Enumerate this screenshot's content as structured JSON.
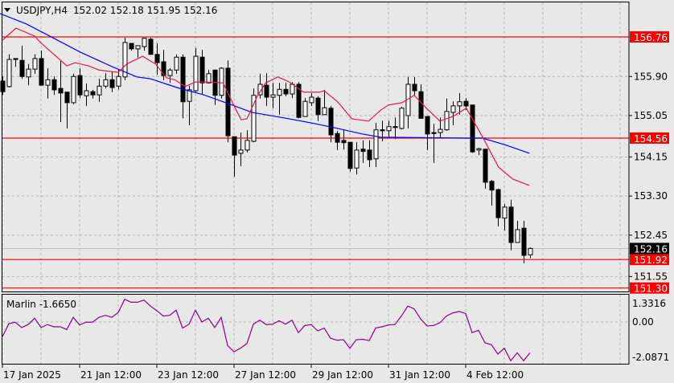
{
  "header": {
    "symbol_timeframe": "USDJPY,H4",
    "ohlc": "152.02 152.18 151.95 152.16",
    "menu_icon": "triangle-down-icon"
  },
  "colors": {
    "background": "#e8e8e8",
    "grid": "#b4b4b4",
    "level_line": "#ff0000",
    "ma_fast": "#e8174a",
    "ma_slow": "#0000ff",
    "oscillator": "#8b008b",
    "bull_body": "#ffffff",
    "bear_body": "#000000"
  },
  "chart_data": [
    {
      "type": "candlestick",
      "title": "USDJPY,H4",
      "ylim": [
        151.12,
        157.5
      ],
      "price_ticks": [
        "155.90",
        "155.05",
        "154.15",
        "153.30",
        "152.45",
        "151.55"
      ],
      "price_tick_values": [
        155.9,
        155.05,
        154.15,
        153.3,
        152.45,
        151.55
      ],
      "levels": [
        {
          "value": 156.76,
          "label": "156.76"
        },
        {
          "value": 154.56,
          "label": "154.56"
        },
        {
          "value": 151.92,
          "label": "151.92"
        },
        {
          "value": 151.3,
          "label": "151.30"
        }
      ],
      "current_price": {
        "value": 152.16,
        "label": "152.16"
      },
      "time_labels": [
        {
          "index": 0,
          "label": "17 Jan 2025"
        },
        {
          "index": 12,
          "label": "21 Jan 12:00"
        },
        {
          "index": 24,
          "label": "23 Jan 12:00"
        },
        {
          "index": 36,
          "label": "27 Jan 12:00"
        },
        {
          "index": 48,
          "label": "29 Jan 12:00"
        },
        {
          "index": 60,
          "label": "31 Jan 12:00"
        },
        {
          "index": 72,
          "label": "4 Feb 12:00"
        }
      ],
      "candles_ohlc": [
        [
          155.8,
          155.9,
          155.5,
          155.57
        ],
        [
          155.68,
          156.38,
          155.66,
          156.27
        ],
        [
          156.29,
          156.29,
          156.11,
          156.27
        ],
        [
          156.25,
          156.57,
          155.85,
          155.9
        ],
        [
          155.89,
          156.17,
          155.71,
          156.06
        ],
        [
          156.06,
          156.38,
          155.96,
          156.29
        ],
        [
          156.29,
          156.46,
          155.71,
          155.71
        ],
        [
          155.71,
          156.08,
          155.42,
          155.83
        ],
        [
          155.83,
          155.9,
          155.5,
          155.61
        ],
        [
          155.64,
          156.25,
          154.91,
          155.54
        ],
        [
          155.56,
          155.56,
          154.77,
          155.33
        ],
        [
          155.33,
          155.96,
          155.29,
          155.9
        ],
        [
          155.92,
          156.08,
          155.43,
          155.5
        ],
        [
          155.48,
          155.75,
          155.26,
          155.59
        ],
        [
          155.57,
          155.61,
          155.42,
          155.5
        ],
        [
          155.5,
          155.85,
          155.35,
          155.69
        ],
        [
          155.69,
          155.97,
          155.64,
          155.83
        ],
        [
          155.83,
          156.01,
          155.56,
          155.66
        ],
        [
          155.69,
          156.06,
          155.62,
          155.9
        ],
        [
          155.89,
          156.74,
          155.82,
          156.64
        ],
        [
          156.62,
          156.62,
          156.46,
          156.5
        ],
        [
          156.5,
          156.57,
          156.31,
          156.57
        ],
        [
          156.55,
          156.74,
          156.46,
          156.73
        ],
        [
          156.71,
          156.74,
          156.38,
          156.38
        ],
        [
          156.38,
          156.62,
          155.94,
          156.2
        ],
        [
          156.22,
          156.48,
          155.82,
          155.92
        ],
        [
          155.92,
          156.08,
          155.76,
          156.04
        ],
        [
          156.04,
          156.38,
          155.96,
          156.32
        ],
        [
          156.32,
          156.38,
          154.99,
          155.35
        ],
        [
          155.36,
          155.7,
          154.84,
          155.61
        ],
        [
          155.59,
          156.52,
          155.56,
          156.34
        ],
        [
          156.32,
          156.48,
          155.52,
          155.76
        ],
        [
          155.76,
          156.04,
          155.75,
          155.96
        ],
        [
          156.04,
          156.04,
          155.28,
          155.49
        ],
        [
          155.49,
          156.1,
          155.42,
          156.08
        ],
        [
          156.08,
          156.25,
          154.47,
          154.61
        ],
        [
          154.59,
          154.59,
          153.72,
          154.19
        ],
        [
          154.23,
          154.68,
          153.95,
          154.3
        ],
        [
          154.3,
          154.73,
          154.25,
          154.51
        ],
        [
          154.49,
          155.64,
          154.47,
          155.49
        ],
        [
          155.5,
          155.96,
          155.42,
          155.73
        ],
        [
          155.71,
          155.97,
          155.26,
          155.45
        ],
        [
          155.45,
          155.76,
          155.21,
          155.5
        ],
        [
          155.49,
          155.76,
          155.07,
          155.62
        ],
        [
          155.62,
          155.76,
          155.47,
          155.52
        ],
        [
          155.52,
          155.78,
          155.43,
          155.73
        ],
        [
          155.73,
          155.78,
          154.99,
          155.01
        ],
        [
          155.03,
          155.43,
          155.03,
          155.36
        ],
        [
          155.33,
          155.54,
          155.26,
          155.45
        ],
        [
          155.43,
          155.47,
          154.93,
          155.07
        ],
        [
          155.07,
          155.61,
          155.07,
          155.22
        ],
        [
          155.21,
          155.26,
          154.47,
          154.63
        ],
        [
          154.66,
          154.72,
          154.3,
          154.47
        ],
        [
          154.51,
          154.73,
          154.31,
          154.46
        ],
        [
          154.47,
          154.47,
          153.83,
          153.9
        ],
        [
          153.91,
          154.47,
          153.77,
          154.3
        ],
        [
          154.32,
          154.51,
          154.02,
          154.27
        ],
        [
          154.3,
          154.51,
          153.93,
          154.09
        ],
        [
          154.11,
          154.89,
          153.93,
          154.74
        ],
        [
          154.74,
          154.94,
          154.49,
          154.72
        ],
        [
          154.72,
          154.94,
          154.59,
          154.81
        ],
        [
          154.81,
          155.01,
          154.54,
          154.79
        ],
        [
          154.77,
          155.24,
          154.75,
          155.21
        ],
        [
          155.05,
          155.89,
          154.77,
          155.73
        ],
        [
          155.73,
          155.89,
          155.49,
          155.59
        ],
        [
          155.57,
          155.73,
          154.99,
          154.99
        ],
        [
          155.03,
          155.03,
          154.3,
          154.65
        ],
        [
          154.68,
          154.87,
          154.02,
          154.66
        ],
        [
          154.68,
          155.01,
          154.56,
          154.75
        ],
        [
          154.74,
          155.42,
          154.72,
          155.14
        ],
        [
          155.12,
          155.36,
          154.84,
          155.26
        ],
        [
          155.26,
          155.54,
          155.07,
          155.35
        ],
        [
          155.36,
          155.43,
          155.17,
          155.26
        ],
        [
          155.28,
          155.28,
          154.24,
          154.26
        ],
        [
          154.3,
          154.35,
          154.19,
          154.33
        ],
        [
          154.32,
          154.32,
          153.46,
          153.6
        ],
        [
          153.62,
          153.65,
          153.09,
          153.43
        ],
        [
          153.44,
          153.46,
          152.64,
          152.83
        ],
        [
          152.82,
          153.13,
          152.55,
          153.06
        ],
        [
          153.06,
          153.22,
          152.12,
          152.29
        ],
        [
          152.29,
          152.76,
          152.29,
          152.57
        ],
        [
          152.6,
          152.76,
          151.84,
          152.01
        ],
        [
          152.02,
          152.18,
          151.95,
          152.16
        ]
      ],
      "ma_fast": [
        [
          0,
          156.69
        ],
        [
          2.1,
          156.95
        ],
        [
          5,
          156.78
        ],
        [
          5.9,
          156.64
        ],
        [
          9.3,
          156.22
        ],
        [
          10,
          156.13
        ],
        [
          11.3,
          156.2
        ],
        [
          13.4,
          156.13
        ],
        [
          15,
          156.04
        ],
        [
          18,
          155.99
        ],
        [
          19.3,
          156.17
        ],
        [
          21.8,
          156.34
        ],
        [
          23.8,
          156.17
        ],
        [
          25.5,
          155.87
        ],
        [
          26.8,
          155.83
        ],
        [
          28.4,
          155.68
        ],
        [
          30,
          155.78
        ],
        [
          31.8,
          155.78
        ],
        [
          34.3,
          155.76
        ],
        [
          35.9,
          155.29
        ],
        [
          37.1,
          154.96
        ],
        [
          38,
          154.98
        ],
        [
          39.6,
          155.47
        ],
        [
          40.9,
          155.76
        ],
        [
          42.8,
          155.89
        ],
        [
          44.6,
          155.78
        ],
        [
          46.8,
          155.56
        ],
        [
          49.3,
          155.56
        ],
        [
          50,
          155.59
        ],
        [
          52.1,
          155.35
        ],
        [
          54.3,
          154.98
        ],
        [
          56.9,
          154.93
        ],
        [
          58.8,
          155.17
        ],
        [
          60,
          155.28
        ],
        [
          62.1,
          155.33
        ],
        [
          64,
          155.49
        ],
        [
          65.9,
          155.21
        ],
        [
          68,
          154.93
        ],
        [
          70,
          155.03
        ],
        [
          72.1,
          155.21
        ],
        [
          74.6,
          154.59
        ],
        [
          77.1,
          153.93
        ],
        [
          79.3,
          153.67
        ],
        [
          81.9,
          153.53
        ]
      ],
      "ma_slow": [
        [
          -0.4,
          157.27
        ],
        [
          3.75,
          157.04
        ],
        [
          8,
          156.73
        ],
        [
          12.1,
          156.43
        ],
        [
          17.1,
          156.11
        ],
        [
          20.9,
          155.89
        ],
        [
          23,
          155.85
        ],
        [
          27.1,
          155.66
        ],
        [
          31.3,
          155.5
        ],
        [
          35.5,
          155.29
        ],
        [
          38.75,
          155.12
        ],
        [
          43.75,
          155.0
        ],
        [
          48,
          154.89
        ],
        [
          52.1,
          154.77
        ],
        [
          55.9,
          154.65
        ],
        [
          58.75,
          154.58
        ],
        [
          72.1,
          154.56
        ],
        [
          74.6,
          154.56
        ],
        [
          78,
          154.42
        ],
        [
          81.9,
          154.23
        ]
      ]
    },
    {
      "type": "line",
      "title": "Marlin -1.6650",
      "ticks": [
        "1.3316",
        "0.00",
        "-2.0871"
      ],
      "tick_values": [
        1.3316,
        0,
        -2.0871
      ],
      "values": [
        -0.8,
        -0.09,
        -0.01,
        -0.3,
        -0.14,
        0.2,
        -0.3,
        -0.14,
        -0.26,
        -0.26,
        -0.41,
        0.25,
        -0.16,
        -0.01,
        -0.01,
        0.25,
        0.36,
        0.25,
        0.51,
        1.23,
        1.07,
        1.07,
        1.19,
        0.86,
        0.61,
        0.32,
        0.36,
        0.64,
        -0.33,
        -0.12,
        0.64,
        0.0,
        0.2,
        -0.3,
        0.25,
        -1.28,
        -1.61,
        -1.42,
        -1.17,
        -0.12,
        0.1,
        -0.14,
        -0.12,
        0.07,
        -0.12,
        0.1,
        -0.58,
        -0.19,
        -0.14,
        -0.48,
        -0.33,
        -0.88,
        -0.99,
        -0.96,
        -1.42,
        -0.96,
        -0.94,
        -1.01,
        -0.33,
        -0.26,
        -0.16,
        -0.14,
        0.32,
        0.86,
        0.71,
        0.16,
        -0.22,
        -0.19,
        -0.04,
        0.32,
        0.49,
        0.57,
        0.46,
        -0.58,
        -0.45,
        -1.13,
        -1.23,
        -1.74,
        -1.42,
        -2.1,
        -1.67,
        -2.1,
        -1.67
      ]
    }
  ]
}
